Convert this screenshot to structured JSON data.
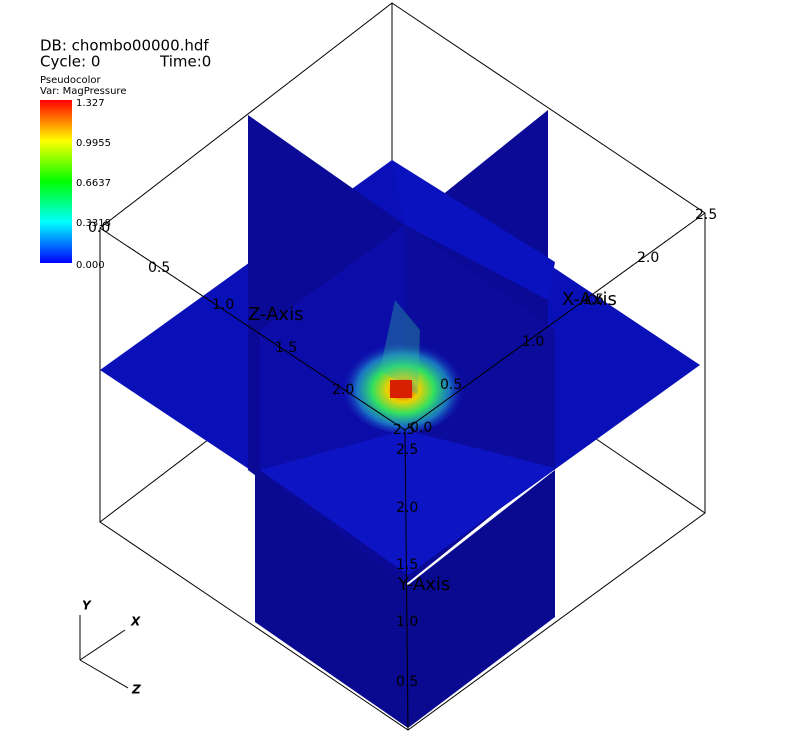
{
  "header": {
    "database": "DB: chombo00000.hdf",
    "cycle": "Cycle: 0",
    "time": "Time:0"
  },
  "legend": {
    "plot": "Pseudocolor",
    "variable": "Var: MagPressure",
    "labels": [
      "1.327",
      "0.9955",
      "0.6637",
      "0.3318",
      "0.000"
    ]
  },
  "axes": {
    "z": {
      "title": "Z-Axis",
      "labels": [
        "0.0",
        "0.5",
        "1.0",
        "1.5",
        "2.0",
        "2.5"
      ]
    },
    "x": {
      "title": "X-Axis",
      "labels": [
        "0.0",
        "0.5",
        "1.0",
        "1.5",
        "2.0",
        "2.5"
      ]
    },
    "y": {
      "title": "Y-Axis",
      "labels": [
        "2.5",
        "2.0",
        "1.5",
        "1.0",
        "0.5"
      ]
    }
  },
  "triad": {
    "y": "Y",
    "x": "X",
    "z": "Z"
  }
}
